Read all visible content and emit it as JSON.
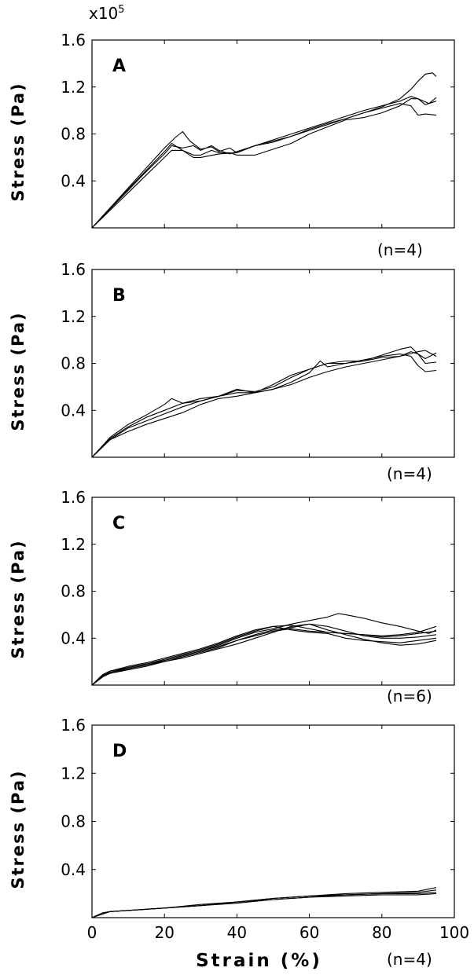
{
  "chart_data": [
    {
      "type": "line",
      "panel": "A",
      "ylabel": "Stress (Pa)",
      "multiplier": "x10",
      "multiplier_exp": "5",
      "yticks": [
        "1.6",
        "1.2",
        "0.8",
        "0.4"
      ],
      "n_label": "(n=4)",
      "ylim": [
        0,
        1.6
      ],
      "xlim": [
        0,
        100
      ],
      "series": [
        {
          "x": [
            0,
            5,
            10,
            15,
            20,
            23,
            25,
            27,
            30,
            33,
            35,
            38,
            40,
            45,
            50,
            55,
            60,
            65,
            70,
            75,
            80,
            85,
            88,
            90,
            92,
            94,
            95
          ],
          "y": [
            0,
            0.17,
            0.34,
            0.51,
            0.68,
            0.77,
            0.82,
            0.74,
            0.67,
            0.69,
            0.65,
            0.68,
            0.64,
            0.7,
            0.73,
            0.78,
            0.84,
            0.89,
            0.93,
            0.98,
            1.03,
            1.1,
            1.18,
            1.25,
            1.31,
            1.32,
            1.29
          ]
        },
        {
          "x": [
            0,
            5,
            10,
            15,
            20,
            22,
            25,
            28,
            30,
            33,
            35,
            38,
            40,
            45,
            50,
            55,
            60,
            65,
            70,
            75,
            80,
            85,
            88,
            90,
            92,
            95
          ],
          "y": [
            0,
            0.16,
            0.32,
            0.48,
            0.63,
            0.7,
            0.68,
            0.7,
            0.66,
            0.7,
            0.66,
            0.63,
            0.65,
            0.7,
            0.75,
            0.8,
            0.85,
            0.9,
            0.95,
            1.0,
            1.04,
            1.08,
            1.12,
            1.1,
            1.05,
            1.08
          ]
        },
        {
          "x": [
            0,
            5,
            10,
            15,
            20,
            22,
            25,
            28,
            30,
            35,
            40,
            45,
            50,
            55,
            60,
            65,
            70,
            75,
            80,
            85,
            88,
            90,
            92,
            95
          ],
          "y": [
            0,
            0.15,
            0.3,
            0.45,
            0.6,
            0.66,
            0.66,
            0.6,
            0.6,
            0.63,
            0.64,
            0.7,
            0.74,
            0.78,
            0.83,
            0.88,
            0.93,
            0.98,
            1.02,
            1.06,
            1.04,
            0.96,
            0.97,
            0.96
          ]
        },
        {
          "x": [
            0,
            5,
            10,
            15,
            20,
            22,
            25,
            28,
            30,
            33,
            35,
            38,
            40,
            45,
            50,
            55,
            60,
            65,
            70,
            75,
            80,
            85,
            88,
            90,
            93,
            95
          ],
          "y": [
            0,
            0.17,
            0.33,
            0.49,
            0.65,
            0.72,
            0.66,
            0.62,
            0.62,
            0.66,
            0.64,
            0.64,
            0.62,
            0.62,
            0.67,
            0.72,
            0.8,
            0.86,
            0.92,
            0.94,
            0.98,
            1.04,
            1.1,
            1.1,
            1.06,
            1.11
          ]
        }
      ]
    },
    {
      "type": "line",
      "panel": "B",
      "ylabel": "Stress (Pa)",
      "yticks": [
        "1.6",
        "1.2",
        "0.8",
        "0.4"
      ],
      "n_label": "(n=4)",
      "ylim": [
        0,
        1.6
      ],
      "xlim": [
        0,
        100
      ],
      "series": [
        {
          "x": [
            0,
            5,
            10,
            15,
            20,
            22,
            25,
            30,
            35,
            40,
            45,
            50,
            55,
            60,
            65,
            70,
            75,
            80,
            85,
            88,
            90,
            92,
            95
          ],
          "y": [
            0,
            0.17,
            0.28,
            0.36,
            0.45,
            0.5,
            0.46,
            0.48,
            0.52,
            0.55,
            0.55,
            0.62,
            0.7,
            0.75,
            0.8,
            0.82,
            0.82,
            0.87,
            0.92,
            0.94,
            0.88,
            0.8,
            0.81
          ]
        },
        {
          "x": [
            0,
            5,
            10,
            15,
            20,
            25,
            30,
            35,
            40,
            45,
            50,
            55,
            60,
            65,
            70,
            75,
            80,
            85,
            88,
            90,
            92,
            95
          ],
          "y": [
            0,
            0.16,
            0.26,
            0.34,
            0.4,
            0.46,
            0.5,
            0.52,
            0.57,
            0.56,
            0.6,
            0.68,
            0.75,
            0.8,
            0.8,
            0.82,
            0.85,
            0.86,
            0.9,
            0.88,
            0.84,
            0.89
          ]
        },
        {
          "x": [
            0,
            5,
            10,
            15,
            20,
            25,
            30,
            35,
            40,
            45,
            50,
            55,
            60,
            63,
            65,
            70,
            75,
            80,
            85,
            88,
            90,
            92,
            95
          ],
          "y": [
            0,
            0.15,
            0.25,
            0.31,
            0.37,
            0.43,
            0.48,
            0.52,
            0.58,
            0.55,
            0.58,
            0.64,
            0.72,
            0.82,
            0.77,
            0.8,
            0.83,
            0.86,
            0.88,
            0.86,
            0.78,
            0.73,
            0.74
          ]
        },
        {
          "x": [
            0,
            5,
            10,
            15,
            20,
            25,
            30,
            35,
            40,
            45,
            50,
            55,
            60,
            65,
            70,
            75,
            80,
            85,
            90,
            92,
            95
          ],
          "y": [
            0,
            0.15,
            0.22,
            0.28,
            0.33,
            0.38,
            0.45,
            0.5,
            0.52,
            0.55,
            0.58,
            0.62,
            0.68,
            0.73,
            0.77,
            0.8,
            0.83,
            0.86,
            0.9,
            0.91,
            0.86
          ]
        }
      ]
    },
    {
      "type": "line",
      "panel": "C",
      "ylabel": "Stress (Pa)",
      "yticks": [
        "1.6",
        "1.2",
        "0.8",
        "0.4"
      ],
      "n_label": "(n=6)",
      "ylim": [
        0,
        1.6
      ],
      "xlim": [
        0,
        100
      ],
      "series": [
        {
          "x": [
            0,
            3,
            5,
            10,
            15,
            20,
            25,
            30,
            35,
            40,
            45,
            50,
            55,
            60,
            65,
            68,
            70,
            75,
            80,
            85,
            90,
            93,
            95
          ],
          "y": [
            0,
            0.08,
            0.11,
            0.15,
            0.18,
            0.21,
            0.25,
            0.29,
            0.34,
            0.4,
            0.45,
            0.48,
            0.52,
            0.55,
            0.58,
            0.61,
            0.6,
            0.57,
            0.53,
            0.5,
            0.46,
            0.44,
            0.47
          ]
        },
        {
          "x": [
            0,
            3,
            5,
            10,
            15,
            20,
            25,
            30,
            35,
            40,
            45,
            50,
            55,
            60,
            65,
            70,
            75,
            80,
            85,
            90,
            95
          ],
          "y": [
            0,
            0.09,
            0.12,
            0.15,
            0.18,
            0.22,
            0.26,
            0.3,
            0.35,
            0.41,
            0.46,
            0.5,
            0.51,
            0.48,
            0.45,
            0.44,
            0.43,
            0.42,
            0.43,
            0.45,
            0.5
          ]
        },
        {
          "x": [
            0,
            3,
            5,
            10,
            15,
            20,
            25,
            30,
            35,
            40,
            45,
            50,
            55,
            60,
            65,
            70,
            75,
            80,
            85,
            90,
            95
          ],
          "y": [
            0,
            0.08,
            0.1,
            0.13,
            0.16,
            0.2,
            0.24,
            0.28,
            0.32,
            0.38,
            0.43,
            0.47,
            0.49,
            0.52,
            0.5,
            0.46,
            0.42,
            0.4,
            0.4,
            0.41,
            0.43
          ]
        },
        {
          "x": [
            0,
            3,
            5,
            10,
            15,
            20,
            25,
            30,
            35,
            40,
            45,
            50,
            55,
            60,
            65,
            70,
            75,
            80,
            85,
            90,
            95
          ],
          "y": [
            0,
            0.09,
            0.12,
            0.16,
            0.19,
            0.23,
            0.27,
            0.31,
            0.36,
            0.42,
            0.47,
            0.5,
            0.47,
            0.45,
            0.44,
            0.4,
            0.38,
            0.37,
            0.36,
            0.38,
            0.4
          ]
        },
        {
          "x": [
            0,
            3,
            5,
            10,
            15,
            20,
            25,
            30,
            35,
            40,
            45,
            50,
            55,
            60,
            65,
            70,
            75,
            80,
            85,
            90,
            95
          ],
          "y": [
            0,
            0.07,
            0.1,
            0.14,
            0.17,
            0.2,
            0.23,
            0.27,
            0.31,
            0.35,
            0.4,
            0.45,
            0.5,
            0.52,
            0.47,
            0.43,
            0.39,
            0.36,
            0.34,
            0.35,
            0.38
          ]
        },
        {
          "x": [
            0,
            3,
            5,
            10,
            15,
            20,
            25,
            30,
            35,
            40,
            45,
            50,
            55,
            60,
            65,
            70,
            75,
            80,
            85,
            90,
            95
          ],
          "y": [
            0,
            0.08,
            0.11,
            0.14,
            0.17,
            0.21,
            0.25,
            0.29,
            0.33,
            0.38,
            0.42,
            0.46,
            0.48,
            0.46,
            0.45,
            0.44,
            0.43,
            0.41,
            0.42,
            0.44,
            0.46
          ]
        }
      ]
    },
    {
      "type": "line",
      "panel": "D",
      "ylabel": "Stress (Pa)",
      "xlabel": "Strain (%)",
      "yticks": [
        "1.6",
        "1.2",
        "0.8",
        "0.4"
      ],
      "xticks": [
        "0",
        "20",
        "40",
        "60",
        "80",
        "100"
      ],
      "n_label": "(n=4)",
      "ylim": [
        0,
        1.6
      ],
      "xlim": [
        0,
        100
      ],
      "series": [
        {
          "x": [
            0,
            3,
            5,
            10,
            20,
            30,
            40,
            50,
            60,
            70,
            80,
            90,
            95
          ],
          "y": [
            0,
            0.04,
            0.05,
            0.06,
            0.08,
            0.1,
            0.13,
            0.16,
            0.18,
            0.2,
            0.21,
            0.22,
            0.25
          ]
        },
        {
          "x": [
            0,
            3,
            5,
            10,
            20,
            30,
            40,
            50,
            60,
            70,
            80,
            90,
            95
          ],
          "y": [
            0,
            0.03,
            0.05,
            0.06,
            0.08,
            0.11,
            0.13,
            0.16,
            0.18,
            0.19,
            0.2,
            0.21,
            0.23
          ]
        },
        {
          "x": [
            0,
            3,
            5,
            10,
            20,
            30,
            40,
            50,
            60,
            70,
            80,
            90,
            95
          ],
          "y": [
            0,
            0.04,
            0.05,
            0.06,
            0.08,
            0.1,
            0.13,
            0.15,
            0.17,
            0.19,
            0.2,
            0.2,
            0.21
          ]
        },
        {
          "x": [
            0,
            3,
            5,
            10,
            20,
            30,
            40,
            50,
            60,
            70,
            80,
            90,
            95
          ],
          "y": [
            0,
            0.04,
            0.05,
            0.06,
            0.08,
            0.1,
            0.12,
            0.15,
            0.17,
            0.18,
            0.19,
            0.19,
            0.2
          ]
        }
      ]
    }
  ]
}
